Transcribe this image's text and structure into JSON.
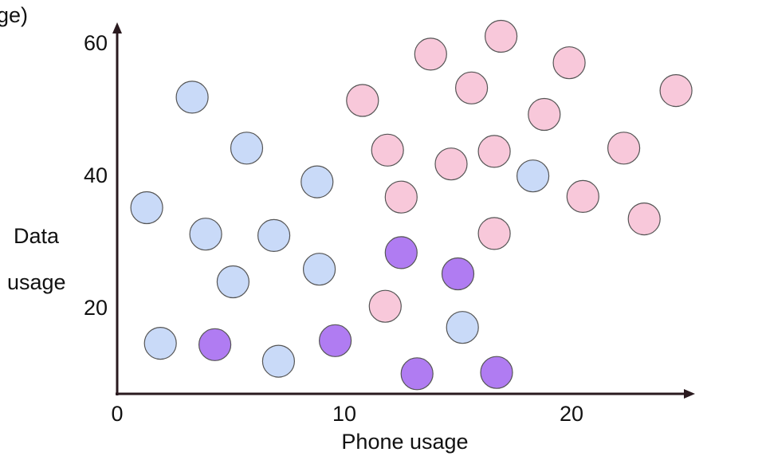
{
  "chart_data": {
    "type": "scatter",
    "title": "",
    "xlabel": "Phone usage",
    "ylabel_lines": [
      "Data",
      "usage"
    ],
    "ylabel_clipped": "ge)",
    "xlim": [
      0,
      25
    ],
    "ylim": [
      5,
      62
    ],
    "xticks": [
      0,
      10,
      20
    ],
    "yticks": [
      20,
      40,
      60
    ],
    "grid": false,
    "legend": "none",
    "series": [
      {
        "color": "#c9daf8",
        "points": [
          {
            "x": 1.3,
            "y": 35
          },
          {
            "x": 1.9,
            "y": 14.5
          },
          {
            "x": 3.3,
            "y": 51.7
          },
          {
            "x": 3.9,
            "y": 31
          },
          {
            "x": 5.1,
            "y": 23.8
          },
          {
            "x": 5.7,
            "y": 44
          },
          {
            "x": 6.9,
            "y": 30.8
          },
          {
            "x": 7.1,
            "y": 11.8
          },
          {
            "x": 8.8,
            "y": 38.9
          },
          {
            "x": 8.9,
            "y": 25.7
          },
          {
            "x": 15.2,
            "y": 16.9
          },
          {
            "x": 18.3,
            "y": 39.8
          }
        ]
      },
      {
        "color": "#b07cf2",
        "points": [
          {
            "x": 4.3,
            "y": 14.3
          },
          {
            "x": 9.6,
            "y": 14.9
          },
          {
            "x": 12.5,
            "y": 28.2
          },
          {
            "x": 13.2,
            "y": 9.9
          },
          {
            "x": 15.0,
            "y": 25.0
          },
          {
            "x": 16.7,
            "y": 10.1
          }
        ]
      },
      {
        "color": "#f8c8da",
        "points": [
          {
            "x": 10.8,
            "y": 51.2
          },
          {
            "x": 11.8,
            "y": 20.1
          },
          {
            "x": 11.9,
            "y": 43.7
          },
          {
            "x": 12.5,
            "y": 36.6
          },
          {
            "x": 13.8,
            "y": 58.2
          },
          {
            "x": 14.7,
            "y": 41.6
          },
          {
            "x": 15.6,
            "y": 53.1
          },
          {
            "x": 16.6,
            "y": 31.1
          },
          {
            "x": 16.6,
            "y": 43.5
          },
          {
            "x": 16.9,
            "y": 60.9
          },
          {
            "x": 18.8,
            "y": 49.1
          },
          {
            "x": 19.9,
            "y": 56.9
          },
          {
            "x": 20.5,
            "y": 36.7
          },
          {
            "x": 22.3,
            "y": 44.0
          },
          {
            "x": 23.2,
            "y": 33.3
          },
          {
            "x": 24.6,
            "y": 52.7
          }
        ]
      }
    ]
  }
}
